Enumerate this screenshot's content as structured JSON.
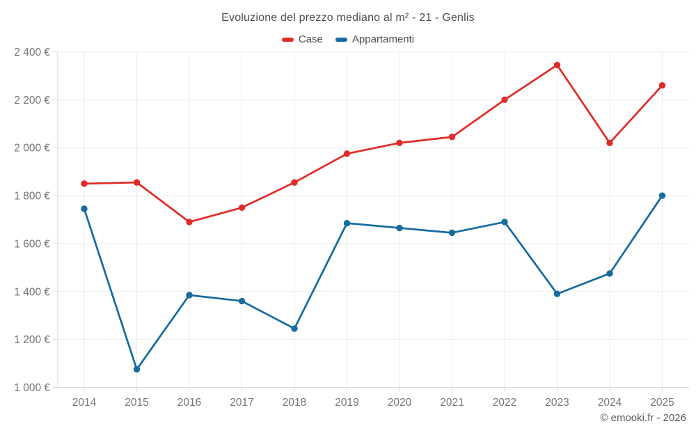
{
  "title": "Evoluzione del prezzo mediano al m² - 21 - Genlis",
  "footer": {
    "copyright": "© emooki.fr - 2026"
  },
  "chart_data": {
    "type": "line",
    "title": "Evoluzione del prezzo mediano al m² - 21 - Genlis",
    "categories": [
      "2014",
      "2015",
      "2016",
      "2017",
      "2018",
      "2019",
      "2020",
      "2021",
      "2022",
      "2023",
      "2024",
      "2025"
    ],
    "series": [
      {
        "name": "Case",
        "color": "#e02c28",
        "values": [
          1850,
          1855,
          1690,
          1750,
          1855,
          1975,
          2020,
          2045,
          2200,
          2345,
          2020,
          2260
        ]
      },
      {
        "name": "Appartamenti",
        "color": "#176b9f",
        "values": [
          1745,
          1075,
          1385,
          1360,
          1245,
          1685,
          1665,
          1645,
          1690,
          1390,
          1475,
          1800
        ]
      }
    ],
    "xlabel": "",
    "ylabel": "",
    "ylim": [
      1000,
      2400
    ],
    "ytick_step": 200,
    "ytick_labels": [
      "1 000 €",
      "1 200 €",
      "1 400 €",
      "1 600 €",
      "1 800 €",
      "2 000 €",
      "2 200 €",
      "2 400 €"
    ],
    "grid": true,
    "legend_position": "top",
    "marker": "circle",
    "grid_color": "#ebebeb",
    "axis_color": "#d6d6d6",
    "tick_label_color": "#757575"
  }
}
